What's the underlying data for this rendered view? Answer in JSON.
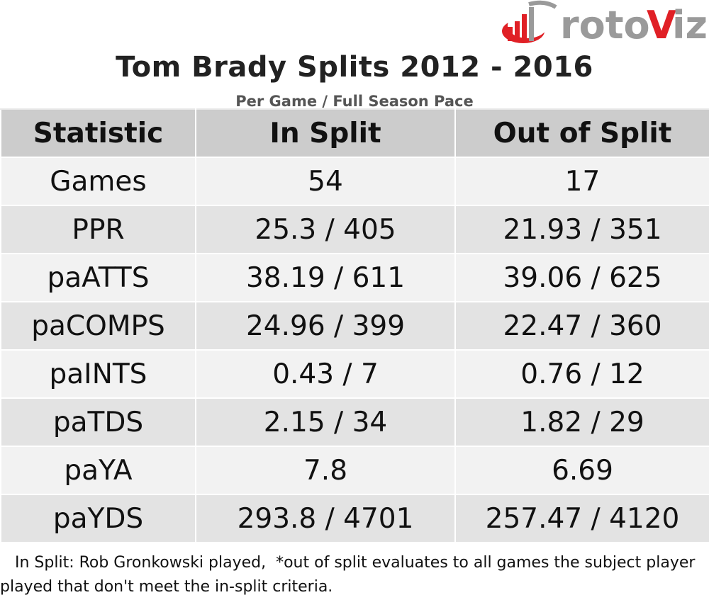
{
  "logo": {
    "text_roto": "roto",
    "text_v": "V",
    "text_iz": "iz",
    "colors": {
      "red": "#e02026",
      "gray": "#9a9a9a"
    }
  },
  "chart_data": {
    "type": "table",
    "title": "Tom Brady Splits 2012 - 2016",
    "subtitle": "Per Game / Full Season Pace",
    "columns": [
      "Statistic",
      "In Split",
      "Out of Split"
    ],
    "rows": [
      [
        "Games",
        "54",
        "17"
      ],
      [
        "PPR",
        "25.3 / 405",
        "21.93 / 351"
      ],
      [
        "paATTS",
        "38.19 / 611",
        "39.06 / 625"
      ],
      [
        "paCOMPS",
        "24.96 / 399",
        "22.47 / 360"
      ],
      [
        "paINTS",
        "0.43 / 7",
        "0.76 / 12"
      ],
      [
        "paTDS",
        "2.15 / 34",
        "1.82 / 29"
      ],
      [
        "paYA",
        "7.8",
        "6.69"
      ],
      [
        "paYDS",
        "293.8 / 4701",
        "257.47 / 4120"
      ]
    ],
    "footnote": "   In Split: Rob Gronkowski played,  *out of split evaluates to all games the subject player played that don't meet the in-split criteria."
  }
}
